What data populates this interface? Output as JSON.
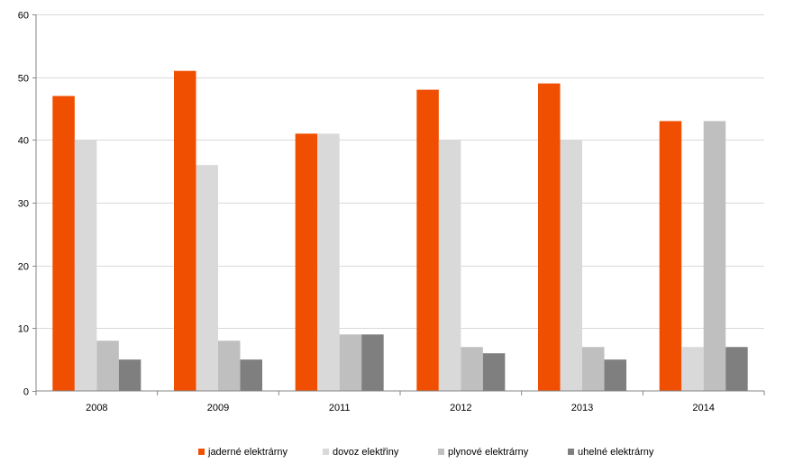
{
  "chart_data": {
    "type": "bar",
    "categories": [
      "2008",
      "2009",
      "2011",
      "2012",
      "2013",
      "2014"
    ],
    "series": [
      {
        "name": "jaderné elektrárny",
        "color": "#F04E00",
        "values": [
          47,
          51,
          41,
          48,
          49,
          43
        ]
      },
      {
        "name": "dovoz elektřiny",
        "color": "#D9D9D9",
        "values": [
          40,
          36,
          41,
          40,
          40,
          7
        ]
      },
      {
        "name": "plynové elektrárny",
        "color": "#BFBFBF",
        "values": [
          8,
          8,
          9,
          7,
          7,
          43
        ]
      },
      {
        "name": "uhelné elektrárny",
        "color": "#7F7F7F",
        "values": [
          5,
          5,
          9,
          6,
          5,
          7
        ]
      }
    ],
    "ylim": [
      0,
      60
    ],
    "yticks": [
      0,
      10,
      20,
      30,
      40,
      50,
      60
    ],
    "grid": true,
    "legend_position": "bottom"
  }
}
